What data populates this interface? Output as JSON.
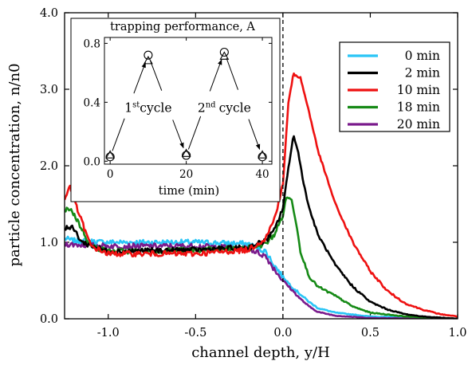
{
  "chart_data": [
    {
      "type": "line",
      "xlabel": "channel depth, y/H",
      "ylabel": "particle concentration, n/n0",
      "xlim": [
        -1.25,
        1.0
      ],
      "ylim": [
        0.0,
        4.0
      ],
      "xticks": [
        -1.0,
        -0.5,
        0.0,
        0.5,
        1.0
      ],
      "xtick_labels": [
        "-1.0",
        "-0.5",
        "0.0",
        "0.5",
        "1.0"
      ],
      "yticks": [
        0.0,
        1.0,
        2.0,
        3.0,
        4.0
      ],
      "ytick_labels": [
        "0.0",
        "1.0",
        "2.0",
        "3.0",
        "4.0"
      ],
      "vline_x": 0.0,
      "legend_position": "top-right",
      "grid": false,
      "series": [
        {
          "name": "0 min",
          "color": "#29c5f6",
          "x": [
            -1.25,
            -1.2,
            -1.0,
            -0.5,
            -0.2,
            -0.1,
            -0.05,
            0.0,
            0.05,
            0.1,
            0.15,
            0.2,
            0.3,
            0.5,
            1.0
          ],
          "y": [
            1.05,
            1.02,
            1.0,
            1.0,
            0.98,
            0.88,
            0.7,
            0.55,
            0.42,
            0.32,
            0.22,
            0.14,
            0.08,
            0.03,
            0.0
          ]
        },
        {
          "name": "2 min",
          "color": "#000000",
          "x": [
            -1.25,
            -1.2,
            -1.15,
            -1.0,
            -0.5,
            -0.2,
            -0.1,
            -0.05,
            0.0,
            0.03,
            0.06,
            0.09,
            0.12,
            0.15,
            0.2,
            0.3,
            0.4,
            0.5,
            0.6,
            0.7,
            0.8,
            1.0
          ],
          "y": [
            1.2,
            1.18,
            1.0,
            0.88,
            0.9,
            0.93,
            1.02,
            1.15,
            1.45,
            1.95,
            2.4,
            2.15,
            1.75,
            1.45,
            1.1,
            0.7,
            0.42,
            0.22,
            0.12,
            0.06,
            0.03,
            0.0
          ]
        },
        {
          "name": "10 min",
          "color": "#ee1111",
          "x": [
            -1.25,
            -1.22,
            -1.18,
            -1.1,
            -1.0,
            -0.5,
            -0.2,
            -0.1,
            -0.05,
            0.0,
            0.03,
            0.06,
            0.1,
            0.15,
            0.2,
            0.3,
            0.4,
            0.5,
            0.6,
            0.7,
            0.8,
            0.9,
            1.0
          ],
          "y": [
            1.55,
            1.75,
            1.45,
            0.95,
            0.85,
            0.85,
            0.9,
            1.05,
            1.3,
            1.75,
            2.8,
            3.2,
            3.15,
            2.7,
            2.2,
            1.5,
            1.0,
            0.62,
            0.36,
            0.2,
            0.12,
            0.06,
            0.03
          ]
        },
        {
          "name": "18 min",
          "color": "#168a16",
          "x": [
            -1.25,
            -1.22,
            -1.18,
            -1.1,
            -1.0,
            -0.5,
            -0.2,
            -0.1,
            -0.05,
            0.0,
            0.02,
            0.05,
            0.08,
            0.1,
            0.15,
            0.2,
            0.3,
            0.4,
            0.5,
            0.7,
            1.0
          ],
          "y": [
            1.4,
            1.45,
            1.3,
            0.95,
            0.88,
            0.9,
            0.92,
            0.98,
            1.1,
            1.35,
            1.6,
            1.55,
            1.2,
            0.88,
            0.55,
            0.42,
            0.3,
            0.16,
            0.08,
            0.03,
            0.0
          ]
        },
        {
          "name": "20 min",
          "color": "#7a1a8c",
          "x": [
            -1.25,
            -1.2,
            -1.0,
            -0.5,
            -0.2,
            -0.1,
            -0.05,
            0.0,
            0.05,
            0.1,
            0.15,
            0.2,
            0.3,
            0.5,
            1.0
          ],
          "y": [
            0.98,
            0.97,
            0.95,
            0.95,
            0.92,
            0.82,
            0.65,
            0.5,
            0.38,
            0.26,
            0.16,
            0.09,
            0.04,
            0.01,
            0.0
          ]
        }
      ]
    },
    {
      "type": "scatter",
      "title": "trapping performance, A",
      "xlabel": "time (min)",
      "ylabel": "",
      "xlim": [
        -1.5,
        42.5
      ],
      "ylim": [
        -0.02,
        0.84
      ],
      "xticks": [
        0,
        20,
        40
      ],
      "xtick_labels": [
        "0",
        "20",
        "40"
      ],
      "yticks": [
        0.0,
        0.4,
        0.8
      ],
      "ytick_labels": [
        "0.0",
        "0.4",
        "0.8"
      ],
      "series": [
        {
          "name": "circles",
          "marker": "circle",
          "x": [
            0,
            10,
            20,
            30,
            40
          ],
          "y": [
            0.03,
            0.72,
            0.04,
            0.74,
            0.03
          ]
        },
        {
          "name": "triangles",
          "marker": "triangle",
          "x": [
            0,
            10,
            20,
            30,
            40
          ],
          "y": [
            0.04,
            0.68,
            0.05,
            0.71,
            0.04
          ]
        }
      ],
      "annotations": [
        {
          "text": "1st cycle",
          "base": "1",
          "sup": "st",
          "tail": " cycle",
          "x": 10,
          "y": 0.36
        },
        {
          "text": "2nd cycle",
          "base": "2",
          "sup": "nd",
          "tail": "cycle",
          "x": 30,
          "y": 0.36
        }
      ]
    }
  ]
}
